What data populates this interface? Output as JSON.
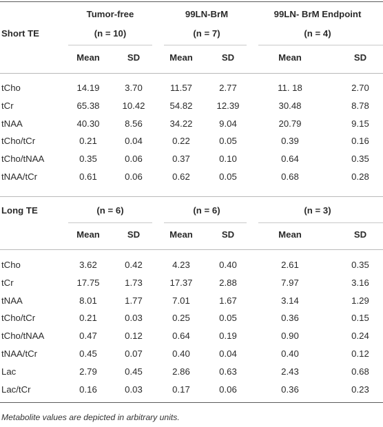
{
  "groups": [
    {
      "name": "Tumor-free",
      "n_short": "(n = 10)",
      "n_long": "(n = 6)"
    },
    {
      "name": "99LN-BrM",
      "n_short": "(n = 7)",
      "n_long": "(n = 6)"
    },
    {
      "name": "99LN- BrM Endpoint",
      "n_short": "(n = 4)",
      "n_long": "(n = 3)"
    }
  ],
  "columns": {
    "mean": "Mean",
    "sd": "SD"
  },
  "short_te": {
    "title": "Short TE",
    "rows": [
      {
        "label": "tCho",
        "values": [
          "14.19",
          "3.70",
          "11.57",
          "2.77",
          "11. 18",
          "2.70"
        ]
      },
      {
        "label": "tCr",
        "values": [
          "65.38",
          "10.42",
          "54.82",
          "12.39",
          "30.48",
          "8.78"
        ]
      },
      {
        "label": "tNAA",
        "values": [
          "40.30",
          "8.56",
          "34.22",
          "9.04",
          "20.79",
          "9.15"
        ]
      },
      {
        "label": "tCho/tCr",
        "values": [
          "0.21",
          "0.04",
          "0.22",
          "0.05",
          "0.39",
          "0.16"
        ]
      },
      {
        "label": "tCho/tNAA",
        "values": [
          "0.35",
          "0.06",
          "0.37",
          "0.10",
          "0.64",
          "0.35"
        ]
      },
      {
        "label": "tNAA/tCr",
        "values": [
          "0.61",
          "0.06",
          "0.62",
          "0.05",
          "0.68",
          "0.28"
        ]
      }
    ]
  },
  "long_te": {
    "title": "Long TE",
    "rows": [
      {
        "label": "tCho",
        "values": [
          "3.62",
          "0.42",
          "4.23",
          "0.40",
          "2.61",
          "0.35"
        ]
      },
      {
        "label": "tCr",
        "values": [
          "17.75",
          "1.73",
          "17.37",
          "2.88",
          "7.97",
          "3.16"
        ]
      },
      {
        "label": "tNAA",
        "values": [
          "8.01",
          "1.77",
          "7.01",
          "1.67",
          "3.14",
          "1.29"
        ]
      },
      {
        "label": "tCho/tCr",
        "values": [
          "0.21",
          "0.03",
          "0.25",
          "0.05",
          "0.36",
          "0.15"
        ]
      },
      {
        "label": "tCho/tNAA",
        "values": [
          "0.47",
          "0.12",
          "0.64",
          "0.19",
          "0.90",
          "0.24"
        ]
      },
      {
        "label": "tNAA/tCr",
        "values": [
          "0.45",
          "0.07",
          "0.40",
          "0.04",
          "0.40",
          "0.12"
        ]
      },
      {
        "label": "Lac",
        "values": [
          "2.79",
          "0.45",
          "2.86",
          "0.63",
          "2.43",
          "0.68"
        ]
      },
      {
        "label": "Lac/tCr",
        "values": [
          "0.16",
          "0.03",
          "0.17",
          "0.06",
          "0.36",
          "0.23"
        ]
      }
    ]
  },
  "footnote": "Metabolite values are depicted in arbitrary units."
}
